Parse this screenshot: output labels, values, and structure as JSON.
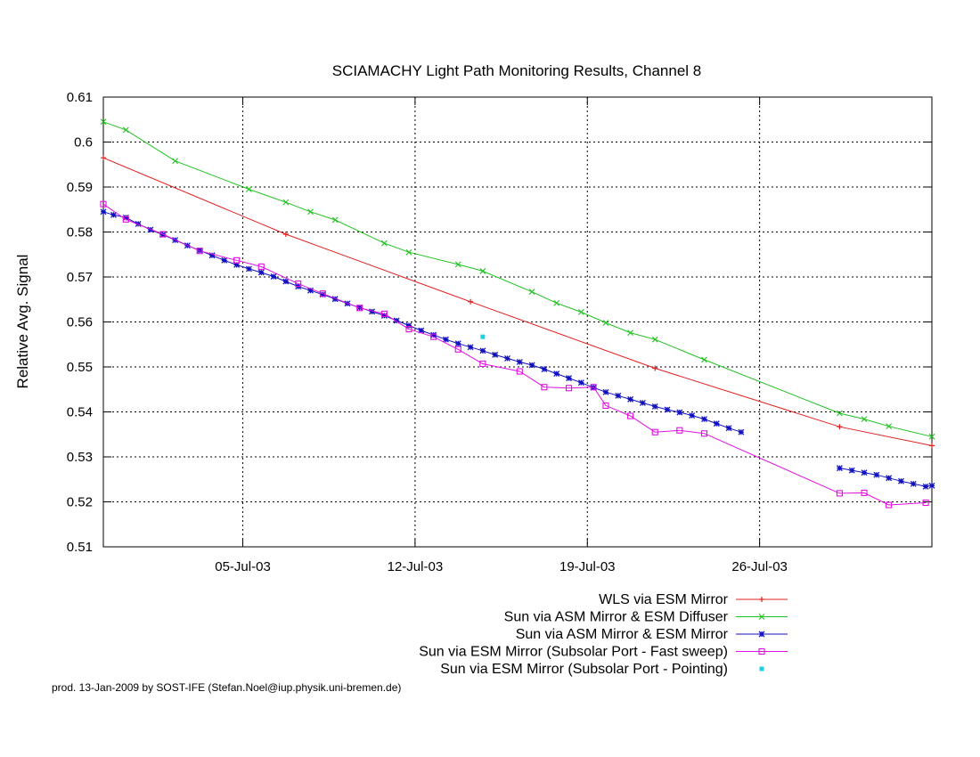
{
  "chart_data": {
    "type": "line",
    "title": "SCIAMACHY Light Path Monitoring Results, Channel 8",
    "xlabel": "",
    "ylabel": "Relative Avg. Signal",
    "x_axis_type": "date",
    "xlim": [
      "2003-06-29T08:00",
      "2003-08-02T00:00"
    ],
    "ylim": [
      0.51,
      0.61
    ],
    "x_ticks": [
      {
        "date": "2003-07-05",
        "label": "05-Jul-03"
      },
      {
        "date": "2003-07-12",
        "label": "12-Jul-03"
      },
      {
        "date": "2003-07-19",
        "label": "19-Jul-03"
      },
      {
        "date": "2003-07-26",
        "label": "26-Jul-03"
      }
    ],
    "y_ticks": [
      {
        "value": 0.51,
        "label": "0.51"
      },
      {
        "value": 0.52,
        "label": "0.52"
      },
      {
        "value": 0.53,
        "label": "0.53"
      },
      {
        "value": 0.54,
        "label": "0.54"
      },
      {
        "value": 0.55,
        "label": "0.55"
      },
      {
        "value": 0.56,
        "label": "0.56"
      },
      {
        "value": 0.57,
        "label": "0.57"
      },
      {
        "value": 0.58,
        "label": "0.58"
      },
      {
        "value": 0.59,
        "label": "0.59"
      },
      {
        "value": 0.6,
        "label": "0.6"
      },
      {
        "value": 0.61,
        "label": "0.61"
      }
    ],
    "grid": true,
    "legend_position": "bottom-right",
    "series": [
      {
        "name": "WLS via ESM Mirror",
        "color": "#e02020",
        "marker": "plus",
        "line": true,
        "points": [
          [
            "2003-06-29T08:00",
            0.5965
          ],
          [
            "2003-07-06T18:00",
            0.5795
          ],
          [
            "2003-07-14T06:00",
            0.5645
          ],
          [
            "2003-07-21T18:00",
            0.5497
          ],
          [
            "2003-07-29T06:00",
            0.5367
          ],
          [
            "2003-08-02T00:00",
            0.5325
          ]
        ]
      },
      {
        "name": "Sun via ASM Mirror & ESM Diffuser",
        "color": "#20c020",
        "marker": "cross",
        "line": true,
        "points": [
          [
            "2003-06-29T08:00",
            0.6045
          ],
          [
            "2003-06-30T06:00",
            0.6027
          ],
          [
            "2003-07-02T06:00",
            0.5958
          ],
          [
            "2003-07-05T06:00",
            0.5895
          ],
          [
            "2003-07-06T18:00",
            0.5866
          ],
          [
            "2003-07-07T18:00",
            0.5845
          ],
          [
            "2003-07-08T18:00",
            0.5827
          ],
          [
            "2003-07-10T18:00",
            0.5775
          ],
          [
            "2003-07-11T18:00",
            0.5755
          ],
          [
            "2003-07-13T18:00",
            0.5728
          ],
          [
            "2003-07-14T18:00",
            0.5713
          ],
          [
            "2003-07-16T18:00",
            0.5667
          ],
          [
            "2003-07-17T18:00",
            0.5642
          ],
          [
            "2003-07-18T18:00",
            0.5622
          ],
          [
            "2003-07-19T18:00",
            0.5598
          ],
          [
            "2003-07-20T18:00",
            0.5576
          ],
          [
            "2003-07-21T18:00",
            0.5561
          ],
          [
            "2003-07-23T18:00",
            0.5516
          ],
          [
            "2003-07-29T06:00",
            0.5397
          ],
          [
            "2003-07-30T06:00",
            0.5384
          ],
          [
            "2003-07-31T06:00",
            0.5368
          ],
          [
            "2003-08-02T00:00",
            0.5345
          ]
        ]
      },
      {
        "name": "Sun via ASM Mirror & ESM Mirror",
        "color": "#1010c0",
        "marker": "star",
        "line": true,
        "segments": [
          [
            [
              "2003-06-29T08:00",
              0.5845
            ],
            [
              "2003-06-29T18:00",
              0.5838
            ],
            [
              "2003-06-30T06:00",
              0.5832
            ],
            [
              "2003-06-30T18:00",
              0.5818
            ],
            [
              "2003-07-01T06:00",
              0.5805
            ],
            [
              "2003-07-01T18:00",
              0.5794
            ],
            [
              "2003-07-02T06:00",
              0.5782
            ],
            [
              "2003-07-02T18:00",
              0.577
            ],
            [
              "2003-07-03T06:00",
              0.5759
            ],
            [
              "2003-07-03T18:00",
              0.5748
            ],
            [
              "2003-07-04T06:00",
              0.5737
            ],
            [
              "2003-07-04T18:00",
              0.5727
            ],
            [
              "2003-07-05T06:00",
              0.5718
            ],
            [
              "2003-07-05T18:00",
              0.571
            ],
            [
              "2003-07-06T06:00",
              0.5701
            ],
            [
              "2003-07-06T18:00",
              0.569
            ],
            [
              "2003-07-07T06:00",
              0.5679
            ],
            [
              "2003-07-07T18:00",
              0.567
            ],
            [
              "2003-07-08T06:00",
              0.5661
            ],
            [
              "2003-07-08T18:00",
              0.5651
            ],
            [
              "2003-07-09T06:00",
              0.5641
            ],
            [
              "2003-07-09T18:00",
              0.5632
            ],
            [
              "2003-07-10T06:00",
              0.5623
            ],
            [
              "2003-07-10T18:00",
              0.5614
            ],
            [
              "2003-07-11T06:00",
              0.5603
            ],
            [
              "2003-07-11T18:00",
              0.5592
            ],
            [
              "2003-07-12T06:00",
              0.5581
            ],
            [
              "2003-07-12T18:00",
              0.5571
            ],
            [
              "2003-07-13T06:00",
              0.5561
            ],
            [
              "2003-07-13T18:00",
              0.5552
            ],
            [
              "2003-07-14T06:00",
              0.5544
            ],
            [
              "2003-07-14T18:00",
              0.5536
            ],
            [
              "2003-07-15T06:00",
              0.5527
            ],
            [
              "2003-07-15T18:00",
              0.5519
            ],
            [
              "2003-07-16T06:00",
              0.5511
            ],
            [
              "2003-07-16T18:00",
              0.5504
            ],
            [
              "2003-07-17T06:00",
              0.5495
            ],
            [
              "2003-07-17T18:00",
              0.5485
            ],
            [
              "2003-07-18T06:00",
              0.5475
            ],
            [
              "2003-07-18T18:00",
              0.5465
            ],
            [
              "2003-07-19T06:00",
              0.5454
            ],
            [
              "2003-07-19T18:00",
              0.5444
            ],
            [
              "2003-07-20T06:00",
              0.5436
            ],
            [
              "2003-07-20T18:00",
              0.5428
            ],
            [
              "2003-07-21T06:00",
              0.542
            ],
            [
              "2003-07-21T18:00",
              0.5412
            ],
            [
              "2003-07-22T06:00",
              0.5405
            ],
            [
              "2003-07-22T18:00",
              0.5399
            ],
            [
              "2003-07-23T06:00",
              0.5392
            ],
            [
              "2003-07-23T18:00",
              0.5384
            ],
            [
              "2003-07-24T06:00",
              0.5374
            ],
            [
              "2003-07-24T18:00",
              0.5364
            ],
            [
              "2003-07-25T06:00",
              0.5355
            ]
          ],
          [
            [
              "2003-07-29T06:00",
              0.5275
            ],
            [
              "2003-07-29T18:00",
              0.527
            ],
            [
              "2003-07-30T06:00",
              0.5265
            ],
            [
              "2003-07-30T18:00",
              0.526
            ],
            [
              "2003-07-31T06:00",
              0.5253
            ],
            [
              "2003-07-31T18:00",
              0.5246
            ],
            [
              "2003-08-01T06:00",
              0.524
            ],
            [
              "2003-08-01T18:00",
              0.5234
            ],
            [
              "2003-08-02T00:00",
              0.5236
            ]
          ]
        ]
      },
      {
        "name": "Sun via ESM Mirror (Subsolar Port - Fast sweep)",
        "color": "#e010e0",
        "marker": "square",
        "line": true,
        "points": [
          [
            "2003-06-29T08:00",
            0.5862
          ],
          [
            "2003-06-30T06:00",
            0.5828
          ],
          [
            "2003-07-01T18:00",
            0.5795
          ],
          [
            "2003-07-03T06:00",
            0.5758
          ],
          [
            "2003-07-04T18:00",
            0.5737
          ],
          [
            "2003-07-05T18:00",
            0.5723
          ],
          [
            "2003-07-07T06:00",
            0.5685
          ],
          [
            "2003-07-08T06:00",
            0.5663
          ],
          [
            "2003-07-09T18:00",
            0.5631
          ],
          [
            "2003-07-10T18:00",
            0.5618
          ],
          [
            "2003-07-11T18:00",
            0.5584
          ],
          [
            "2003-07-12T18:00",
            0.5567
          ],
          [
            "2003-07-13T18:00",
            0.5539
          ],
          [
            "2003-07-14T18:00",
            0.5507
          ],
          [
            "2003-07-16T06:00",
            0.549
          ],
          [
            "2003-07-17T06:00",
            0.5455
          ],
          [
            "2003-07-18T06:00",
            0.5453
          ],
          [
            "2003-07-19T06:00",
            0.5455
          ],
          [
            "2003-07-19T18:00",
            0.5414
          ],
          [
            "2003-07-20T18:00",
            0.5391
          ],
          [
            "2003-07-21T18:00",
            0.5355
          ],
          [
            "2003-07-22T18:00",
            0.5359
          ],
          [
            "2003-07-23T18:00",
            0.5352
          ],
          [
            "2003-07-29T06:00",
            0.5219
          ],
          [
            "2003-07-30T06:00",
            0.522
          ],
          [
            "2003-07-31T06:00",
            0.5193
          ],
          [
            "2003-08-01T18:00",
            0.5198
          ]
        ]
      },
      {
        "name": "Sun via ESM Mirror (Subsolar Port - Pointing)",
        "color": "#20d0e0",
        "marker": "dot",
        "line": false,
        "points": [
          [
            "2003-07-14T18:00",
            0.5567
          ]
        ]
      }
    ]
  },
  "footer": "prod. 13-Jan-2009 by SOST-IFE (Stefan.Noel@iup.physik.uni-bremen.de)"
}
